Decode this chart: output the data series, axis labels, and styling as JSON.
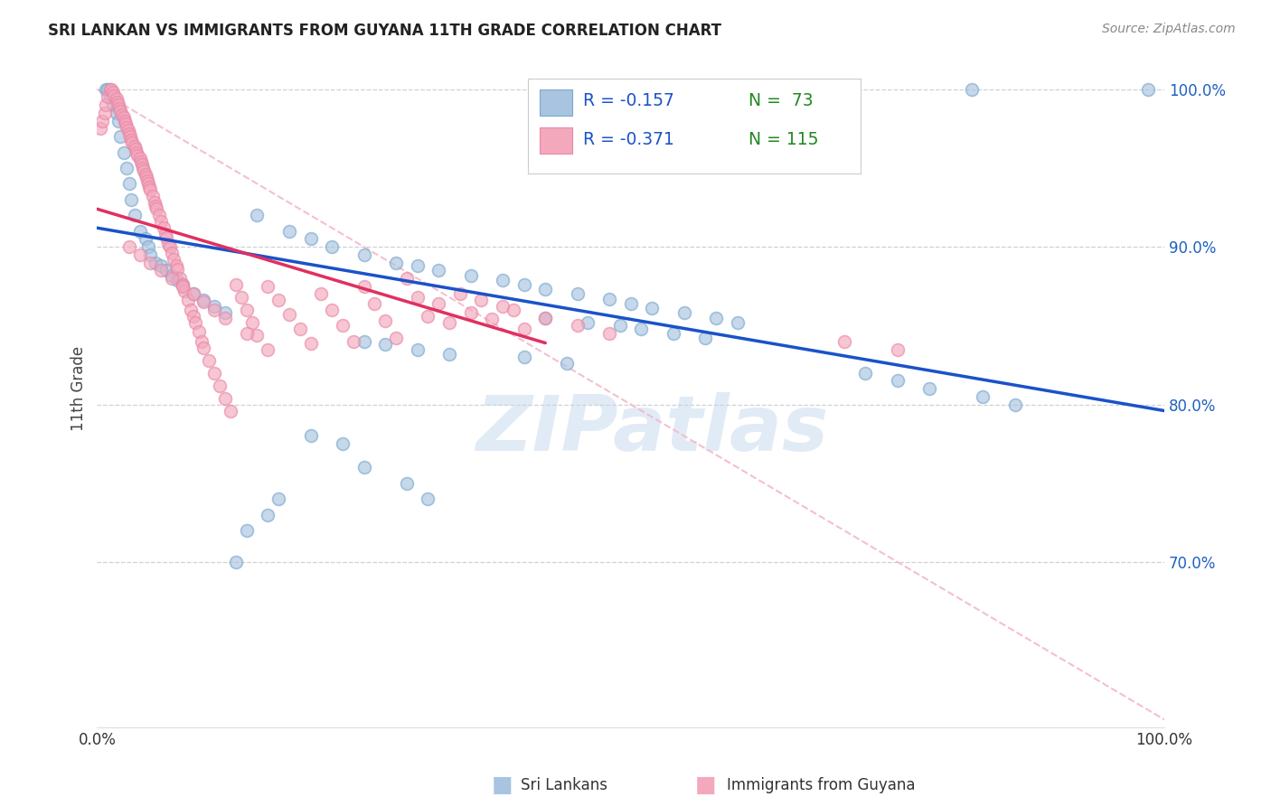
{
  "title": "SRI LANKAN VS IMMIGRANTS FROM GUYANA 11TH GRADE CORRELATION CHART",
  "source": "Source: ZipAtlas.com",
  "ylabel": "11th Grade",
  "watermark": "ZIPatlas",
  "blue_color": "#a8c4e0",
  "blue_edge_color": "#7aa8d0",
  "pink_color": "#f4a8bc",
  "pink_edge_color": "#e888a8",
  "blue_line_color": "#1a52c8",
  "pink_line_color": "#e03060",
  "diag_line_color": "#f4b8cc",
  "background_color": "#ffffff",
  "grid_color": "#c8c8c8",
  "title_color": "#222222",
  "source_color": "#888888",
  "ylabel_color": "#444444",
  "ytick_color": "#2060c0",
  "xtick_color": "#333333",
  "legend_r_color": "#1a52c8",
  "legend_n_color": "#228822",
  "legend_border_color": "#cccccc",
  "xmin": 0.0,
  "xmax": 1.0,
  "ymin": 0.595,
  "ymax": 1.025,
  "yticks": [
    0.7,
    0.8,
    0.9,
    1.0
  ],
  "ytick_labels": [
    "70.0%",
    "80.0%",
    "90.0%",
    "100.0%"
  ],
  "blue_line_x": [
    0.0,
    1.0
  ],
  "blue_line_y": [
    0.912,
    0.796
  ],
  "pink_line_x": [
    0.0,
    0.42
  ],
  "pink_line_y": [
    0.924,
    0.839
  ],
  "diag_line_x": [
    0.0,
    1.0
  ],
  "diag_line_y": [
    1.0,
    0.6
  ],
  "blue_x": [
    0.008,
    0.01,
    0.012,
    0.015,
    0.018,
    0.02,
    0.022,
    0.025,
    0.028,
    0.03,
    0.032,
    0.035,
    0.04,
    0.045,
    0.048,
    0.05,
    0.055,
    0.06,
    0.065,
    0.07,
    0.075,
    0.08,
    0.09,
    0.1,
    0.11,
    0.12,
    0.15,
    0.18,
    0.2,
    0.22,
    0.25,
    0.28,
    0.3,
    0.32,
    0.35,
    0.38,
    0.4,
    0.42,
    0.45,
    0.48,
    0.5,
    0.52,
    0.55,
    0.58,
    0.6,
    0.42,
    0.46,
    0.49,
    0.51,
    0.54,
    0.57,
    0.25,
    0.27,
    0.3,
    0.33,
    0.25,
    0.29,
    0.31,
    0.82,
    0.985,
    0.72,
    0.75,
    0.78,
    0.83,
    0.86,
    0.4,
    0.44,
    0.2,
    0.23,
    0.17,
    0.16,
    0.14,
    0.13
  ],
  "blue_y": [
    1.0,
    1.0,
    0.995,
    0.99,
    0.985,
    0.98,
    0.97,
    0.96,
    0.95,
    0.94,
    0.93,
    0.92,
    0.91,
    0.905,
    0.9,
    0.895,
    0.89,
    0.888,
    0.885,
    0.882,
    0.879,
    0.876,
    0.87,
    0.866,
    0.862,
    0.858,
    0.92,
    0.91,
    0.905,
    0.9,
    0.895,
    0.89,
    0.888,
    0.885,
    0.882,
    0.879,
    0.876,
    0.873,
    0.87,
    0.867,
    0.864,
    0.861,
    0.858,
    0.855,
    0.852,
    0.855,
    0.852,
    0.85,
    0.848,
    0.845,
    0.842,
    0.84,
    0.838,
    0.835,
    0.832,
    0.76,
    0.75,
    0.74,
    1.0,
    1.0,
    0.82,
    0.815,
    0.81,
    0.805,
    0.8,
    0.83,
    0.826,
    0.78,
    0.775,
    0.74,
    0.73,
    0.72,
    0.7
  ],
  "pink_x": [
    0.003,
    0.005,
    0.007,
    0.008,
    0.01,
    0.012,
    0.013,
    0.015,
    0.016,
    0.018,
    0.019,
    0.02,
    0.021,
    0.022,
    0.023,
    0.025,
    0.026,
    0.027,
    0.028,
    0.029,
    0.03,
    0.031,
    0.032,
    0.033,
    0.035,
    0.036,
    0.037,
    0.038,
    0.04,
    0.041,
    0.042,
    0.043,
    0.044,
    0.045,
    0.046,
    0.047,
    0.048,
    0.049,
    0.05,
    0.052,
    0.054,
    0.055,
    0.056,
    0.058,
    0.06,
    0.062,
    0.064,
    0.065,
    0.067,
    0.068,
    0.07,
    0.072,
    0.074,
    0.075,
    0.078,
    0.08,
    0.082,
    0.085,
    0.088,
    0.09,
    0.092,
    0.095,
    0.098,
    0.1,
    0.105,
    0.11,
    0.115,
    0.12,
    0.125,
    0.13,
    0.135,
    0.14,
    0.145,
    0.15,
    0.16,
    0.17,
    0.18,
    0.19,
    0.2,
    0.21,
    0.22,
    0.23,
    0.24,
    0.25,
    0.26,
    0.27,
    0.28,
    0.29,
    0.3,
    0.31,
    0.32,
    0.33,
    0.34,
    0.35,
    0.36,
    0.37,
    0.38,
    0.39,
    0.4,
    0.42,
    0.45,
    0.48,
    0.03,
    0.04,
    0.05,
    0.06,
    0.07,
    0.08,
    0.09,
    0.1,
    0.11,
    0.12,
    0.14,
    0.16,
    0.7,
    0.75
  ],
  "pink_y": [
    0.975,
    0.98,
    0.985,
    0.99,
    0.995,
    1.0,
    1.0,
    0.998,
    0.996,
    0.994,
    0.992,
    0.99,
    0.988,
    0.986,
    0.984,
    0.982,
    0.98,
    0.978,
    0.976,
    0.974,
    0.972,
    0.97,
    0.968,
    0.966,
    0.964,
    0.962,
    0.96,
    0.958,
    0.956,
    0.954,
    0.952,
    0.95,
    0.948,
    0.946,
    0.944,
    0.942,
    0.94,
    0.938,
    0.936,
    0.932,
    0.928,
    0.926,
    0.924,
    0.92,
    0.916,
    0.912,
    0.908,
    0.906,
    0.902,
    0.9,
    0.896,
    0.892,
    0.888,
    0.886,
    0.88,
    0.876,
    0.872,
    0.866,
    0.86,
    0.856,
    0.852,
    0.846,
    0.84,
    0.836,
    0.828,
    0.82,
    0.812,
    0.804,
    0.796,
    0.876,
    0.868,
    0.86,
    0.852,
    0.844,
    0.875,
    0.866,
    0.857,
    0.848,
    0.839,
    0.87,
    0.86,
    0.85,
    0.84,
    0.875,
    0.864,
    0.853,
    0.842,
    0.88,
    0.868,
    0.856,
    0.864,
    0.852,
    0.87,
    0.858,
    0.866,
    0.854,
    0.862,
    0.86,
    0.848,
    0.855,
    0.85,
    0.845,
    0.9,
    0.895,
    0.89,
    0.885,
    0.88,
    0.875,
    0.87,
    0.865,
    0.86,
    0.855,
    0.845,
    0.835,
    0.84,
    0.835
  ],
  "scatter_size": 100,
  "scatter_alpha": 0.65,
  "scatter_lw": 1.2
}
